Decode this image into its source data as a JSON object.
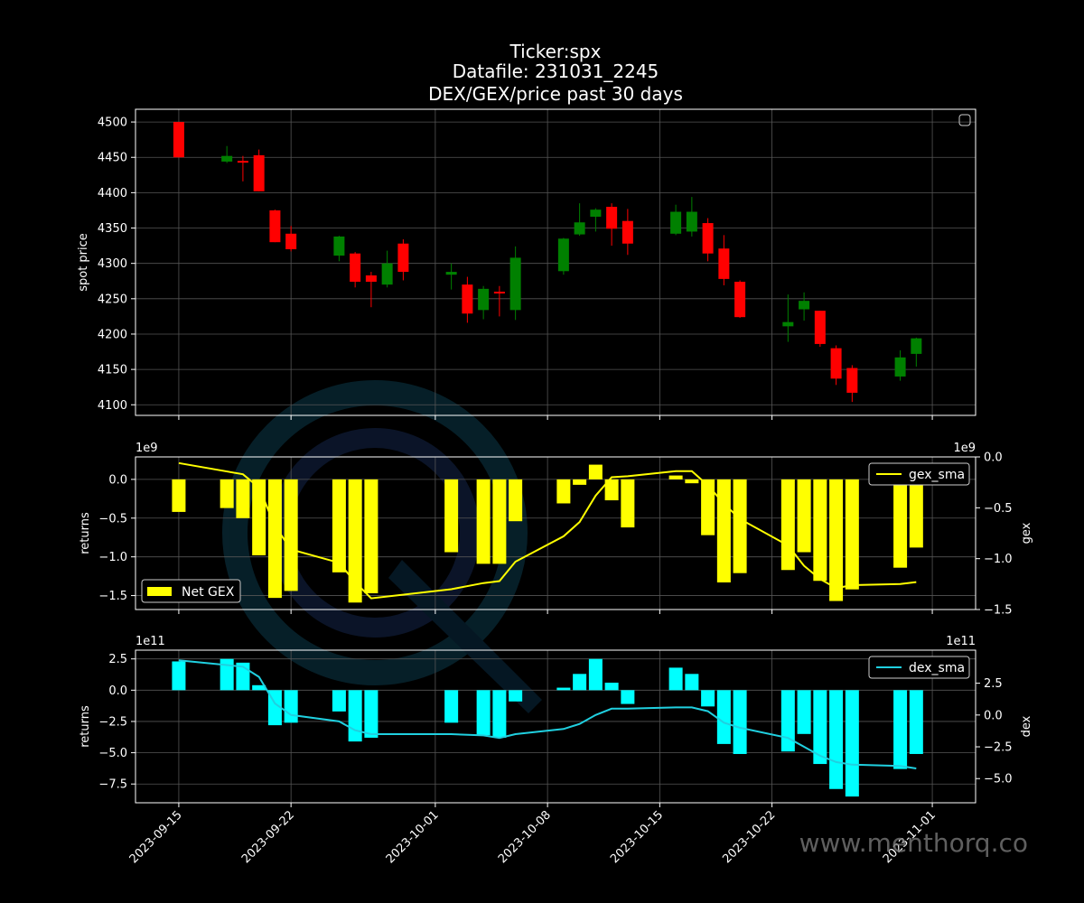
{
  "title_lines": [
    "Ticker:spx",
    "Datafile: 231031_2245",
    "DEX/GEX/price past 30 days"
  ],
  "watermark": "www.menthorq.co",
  "colors": {
    "background": "#000000",
    "up": "#008000",
    "down": "#ff0000",
    "gex_bar": "#ffff00",
    "gex_line": "#ffff00",
    "dex_bar": "#00ffff",
    "dex_line": "#20d0e0",
    "grid": "#555555",
    "axis": "#ffffff"
  },
  "x_axis": {
    "tick_labels": [
      "2023-09-15",
      "2023-09-22",
      "2023-10-01",
      "2023-10-08",
      "2023-10-15",
      "2023-10-22",
      "2023-11-01"
    ],
    "tick_days": [
      0,
      7,
      16,
      23,
      30,
      37,
      47
    ],
    "range_days": [
      -2.7,
      49.7
    ]
  },
  "chart_data": [
    {
      "type": "candlestick",
      "title": "",
      "ylabel": "spot price",
      "ylim": [
        4085,
        4518
      ],
      "yticks": [
        4100,
        4150,
        4200,
        4250,
        4300,
        4350,
        4400,
        4450,
        4500
      ],
      "grid": true,
      "legend": "top-right (empty)",
      "candles": [
        {
          "date": "2023-09-15",
          "open": 4500,
          "close": 4450,
          "high": 4500,
          "low": 4450
        },
        {
          "date": "2023-09-18",
          "open": 4444,
          "close": 4452,
          "high": 4466,
          "low": 4442
        },
        {
          "date": "2023-09-19",
          "open": 4445,
          "close": 4444,
          "high": 4452,
          "low": 4416
        },
        {
          "date": "2023-09-20",
          "open": 4453,
          "close": 4402,
          "high": 4461,
          "low": 4402
        },
        {
          "date": "2023-09-21",
          "open": 4375,
          "close": 4330,
          "high": 4376,
          "low": 4330
        },
        {
          "date": "2023-09-22",
          "open": 4342,
          "close": 4320,
          "high": 4353,
          "low": 4317
        },
        {
          "date": "2023-09-25",
          "open": 4311,
          "close": 4338,
          "high": 4339,
          "low": 4303
        },
        {
          "date": "2023-09-26",
          "open": 4314,
          "close": 4274,
          "high": 4316,
          "low": 4266
        },
        {
          "date": "2023-09-27",
          "open": 4283,
          "close": 4274,
          "high": 4288,
          "low": 4238
        },
        {
          "date": "2023-09-28",
          "open": 4270,
          "close": 4300,
          "high": 4318,
          "low": 4266
        },
        {
          "date": "2023-09-29",
          "open": 4328,
          "close": 4288,
          "high": 4334,
          "low": 4276
        },
        {
          "date": "2023-10-02",
          "open": 4284,
          "close": 4288,
          "high": 4300,
          "low": 4263
        },
        {
          "date": "2023-10-03",
          "open": 4270,
          "close": 4229,
          "high": 4281,
          "low": 4216
        },
        {
          "date": "2023-10-04",
          "open": 4234,
          "close": 4264,
          "high": 4268,
          "low": 4221
        },
        {
          "date": "2023-10-05",
          "open": 4260,
          "close": 4258,
          "high": 4268,
          "low": 4225
        },
        {
          "date": "2023-10-06",
          "open": 4234,
          "close": 4308,
          "high": 4324,
          "low": 4220
        },
        {
          "date": "2023-10-09",
          "open": 4289,
          "close": 4335,
          "high": 4336,
          "low": 4284
        },
        {
          "date": "2023-10-10",
          "open": 4341,
          "close": 4358,
          "high": 4385,
          "low": 4339
        },
        {
          "date": "2023-10-11",
          "open": 4366,
          "close": 4376,
          "high": 4378,
          "low": 4345
        },
        {
          "date": "2023-10-12",
          "open": 4380,
          "close": 4349,
          "high": 4385,
          "low": 4325
        },
        {
          "date": "2023-10-13",
          "open": 4360,
          "close": 4328,
          "high": 4377,
          "low": 4312
        },
        {
          "date": "2023-10-16",
          "open": 4342,
          "close": 4373,
          "high": 4383,
          "low": 4340
        },
        {
          "date": "2023-10-17",
          "open": 4345,
          "close": 4373,
          "high": 4394,
          "low": 4338
        },
        {
          "date": "2023-10-18",
          "open": 4357,
          "close": 4314,
          "high": 4364,
          "low": 4303
        },
        {
          "date": "2023-10-19",
          "open": 4321,
          "close": 4278,
          "high": 4340,
          "low": 4269
        },
        {
          "date": "2023-10-20",
          "open": 4274,
          "close": 4224,
          "high": 4276,
          "low": 4223
        },
        {
          "date": "2023-10-23",
          "open": 4211,
          "close": 4217,
          "high": 4256,
          "low": 4189
        },
        {
          "date": "2023-10-24",
          "open": 4235,
          "close": 4247,
          "high": 4259,
          "low": 4219
        },
        {
          "date": "2023-10-25",
          "open": 4233,
          "close": 4186,
          "high": 4233,
          "low": 4182
        },
        {
          "date": "2023-10-26",
          "open": 4180,
          "close": 4137,
          "high": 4184,
          "low": 4128
        },
        {
          "date": "2023-10-27",
          "open": 4152,
          "close": 4117,
          "high": 4156,
          "low": 4104
        },
        {
          "date": "2023-10-30",
          "open": 4140,
          "close": 4167,
          "high": 4177,
          "low": 4134
        },
        {
          "date": "2023-10-31",
          "open": 4172,
          "close": 4194,
          "high": 4195,
          "low": 4154
        }
      ]
    },
    {
      "type": "bar",
      "title": "",
      "ylabel": "returns",
      "ylabel_right": "gex",
      "left_exponent": "1e9",
      "right_exponent": "1e9",
      "ylim": [
        -1.68,
        0.29
      ],
      "yticks": [
        0.0,
        -0.5,
        -1.0,
        -1.5
      ],
      "ylim_right": [
        -1.5,
        0.0
      ],
      "yticks_right": [
        0.0,
        -0.5,
        -1.0,
        -1.5
      ],
      "grid": true,
      "legend": [
        {
          "label": "gex_sma",
          "kind": "line",
          "position": "top-right"
        },
        {
          "label": "Net GEX",
          "kind": "bar",
          "position": "bottom-left"
        }
      ],
      "series": [
        {
          "name": "Net GEX",
          "kind": "bar",
          "x": [
            "2023-09-15",
            "2023-09-18",
            "2023-09-19",
            "2023-09-20",
            "2023-09-21",
            "2023-09-22",
            "2023-09-25",
            "2023-09-26",
            "2023-09-27",
            "2023-10-02",
            "2023-10-04",
            "2023-10-05",
            "2023-10-06",
            "2023-10-09",
            "2023-10-10",
            "2023-10-11",
            "2023-10-12",
            "2023-10-13",
            "2023-10-16",
            "2023-10-17",
            "2023-10-18",
            "2023-10-19",
            "2023-10-20",
            "2023-10-23",
            "2023-10-24",
            "2023-10-25",
            "2023-10-26",
            "2023-10-27",
            "2023-10-30",
            "2023-10-31"
          ],
          "values": [
            -0.42,
            -0.37,
            -0.5,
            -0.98,
            -1.53,
            -1.44,
            -1.2,
            -1.59,
            -1.47,
            -0.94,
            -1.09,
            -1.09,
            -0.54,
            -0.31,
            -0.07,
            0.19,
            -0.27,
            -0.62,
            0.05,
            -0.05,
            -0.72,
            -1.33,
            -1.21,
            -1.17,
            -0.94,
            -1.31,
            -1.57,
            -1.42,
            -1.14,
            -0.88
          ]
        },
        {
          "name": "gex_sma",
          "kind": "line",
          "axis": "right",
          "x": [
            "2023-09-15",
            "2023-09-19",
            "2023-09-20",
            "2023-09-21",
            "2023-09-22",
            "2023-09-25",
            "2023-09-26",
            "2023-09-27",
            "2023-10-02",
            "2023-10-04",
            "2023-10-05",
            "2023-10-06",
            "2023-10-09",
            "2023-10-10",
            "2023-10-11",
            "2023-10-12",
            "2023-10-13",
            "2023-10-16",
            "2023-10-17",
            "2023-10-18",
            "2023-10-19",
            "2023-10-20",
            "2023-10-23",
            "2023-10-24",
            "2023-10-25",
            "2023-10-26",
            "2023-10-27",
            "2023-10-30",
            "2023-10-31"
          ],
          "values": [
            -0.06,
            -0.17,
            -0.3,
            -0.68,
            -0.91,
            -1.04,
            -1.23,
            -1.39,
            -1.3,
            -1.24,
            -1.22,
            -1.03,
            -0.78,
            -0.64,
            -0.38,
            -0.2,
            -0.19,
            -0.14,
            -0.14,
            -0.28,
            -0.46,
            -0.61,
            -0.87,
            -1.07,
            -1.2,
            -1.29,
            -1.26,
            -1.25,
            -1.23
          ]
        }
      ]
    },
    {
      "type": "bar",
      "title": "",
      "ylabel": "returns",
      "ylabel_right": "dex",
      "left_exponent": "1e11",
      "right_exponent": "1e11",
      "ylim": [
        -9.0,
        3.2
      ],
      "yticks": [
        2.5,
        0.0,
        -2.5,
        -5.0,
        -7.5
      ],
      "ylim_right": [
        -6.9,
        5.1
      ],
      "yticks_right": [
        2.5,
        0.0,
        -2.5,
        -5.0
      ],
      "grid": true,
      "legend": [
        {
          "label": "dex_sma",
          "kind": "line",
          "position": "top-right"
        }
      ],
      "series": [
        {
          "name": "",
          "kind": "bar",
          "x": [
            "2023-09-15",
            "2023-09-18",
            "2023-09-19",
            "2023-09-20",
            "2023-09-21",
            "2023-09-22",
            "2023-09-25",
            "2023-09-26",
            "2023-09-27",
            "2023-10-02",
            "2023-10-04",
            "2023-10-05",
            "2023-10-06",
            "2023-10-09",
            "2023-10-10",
            "2023-10-11",
            "2023-10-12",
            "2023-10-13",
            "2023-10-16",
            "2023-10-17",
            "2023-10-18",
            "2023-10-19",
            "2023-10-20",
            "2023-10-23",
            "2023-10-24",
            "2023-10-25",
            "2023-10-26",
            "2023-10-27",
            "2023-10-30",
            "2023-10-31"
          ],
          "values": [
            2.3,
            2.5,
            2.2,
            0.4,
            -2.8,
            -2.6,
            -1.7,
            -4.1,
            -3.8,
            -2.6,
            -3.6,
            -3.8,
            -0.9,
            0.2,
            1.3,
            2.5,
            0.6,
            -1.1,
            1.8,
            1.3,
            -1.3,
            -4.3,
            -5.1,
            -4.9,
            -3.5,
            -5.9,
            -7.9,
            -8.5,
            -6.3,
            -5.1
          ]
        },
        {
          "name": "dex_sma",
          "kind": "line",
          "axis": "right",
          "x": [
            "2023-09-15",
            "2023-09-19",
            "2023-09-20",
            "2023-09-21",
            "2023-09-22",
            "2023-09-25",
            "2023-09-26",
            "2023-09-27",
            "2023-10-02",
            "2023-10-04",
            "2023-10-05",
            "2023-10-06",
            "2023-10-09",
            "2023-10-10",
            "2023-10-11",
            "2023-10-12",
            "2023-10-13",
            "2023-10-16",
            "2023-10-17",
            "2023-10-18",
            "2023-10-19",
            "2023-10-20",
            "2023-10-23",
            "2023-10-24",
            "2023-10-25",
            "2023-10-26",
            "2023-10-27",
            "2023-10-30",
            "2023-10-31"
          ],
          "values": [
            4.3,
            3.8,
            3.0,
            0.9,
            0.0,
            -0.5,
            -1.2,
            -1.5,
            -1.5,
            -1.6,
            -1.8,
            -1.5,
            -1.1,
            -0.7,
            0.0,
            0.5,
            0.5,
            0.6,
            0.6,
            0.3,
            -0.6,
            -1.0,
            -1.8,
            -2.5,
            -3.2,
            -3.7,
            -3.9,
            -4.0,
            -4.2
          ]
        }
      ]
    }
  ]
}
